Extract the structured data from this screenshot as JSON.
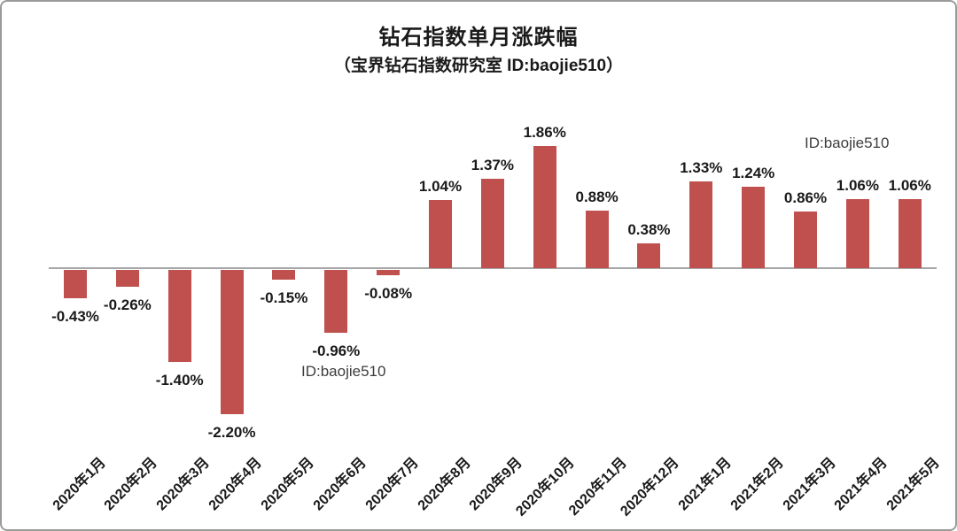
{
  "title": "钻石指数单月涨跌幅",
  "subtitle": "（宝界钻石指数研究室  ID:baojie510）",
  "watermarks": {
    "top_right": "ID:baojie510",
    "mid_left": "ID:baojie510"
  },
  "chart_data": {
    "type": "bar",
    "title": "钻石指数单月涨跌幅",
    "subtitle": "（宝界钻石指数研究室  ID:baojie510）",
    "categories": [
      "2020年1月",
      "2020年2月",
      "2020年3月",
      "2020年4月",
      "2020年5月",
      "2020年6月",
      "2020年7月",
      "2020年8月",
      "2020年9月",
      "2020年10月",
      "2020年11月",
      "2020年12月",
      "2021年1月",
      "2021年2月",
      "2021年3月",
      "2021年4月",
      "2021年5月"
    ],
    "values": [
      -0.43,
      -0.26,
      -1.4,
      -2.2,
      -0.15,
      -0.96,
      -0.08,
      1.04,
      1.37,
      1.86,
      0.88,
      0.38,
      1.33,
      1.24,
      0.86,
      1.06,
      1.06
    ],
    "value_labels": [
      "-0.43%",
      "-0.26%",
      "-1.40%",
      "-2.20%",
      "-0.15%",
      "-0.96%",
      "-0.08%",
      "1.04%",
      "1.37%",
      "1.86%",
      "0.88%",
      "0.38%",
      "1.33%",
      "1.24%",
      "0.86%",
      "1.06%",
      "1.06%"
    ],
    "xlabel": "",
    "ylabel": "",
    "ylim": [
      -2.5,
      2.2
    ],
    "grid": false,
    "legend": "none",
    "bar_color": "#C0504D",
    "axis_color": "#A6A6A6",
    "label_position": "outside-end"
  }
}
